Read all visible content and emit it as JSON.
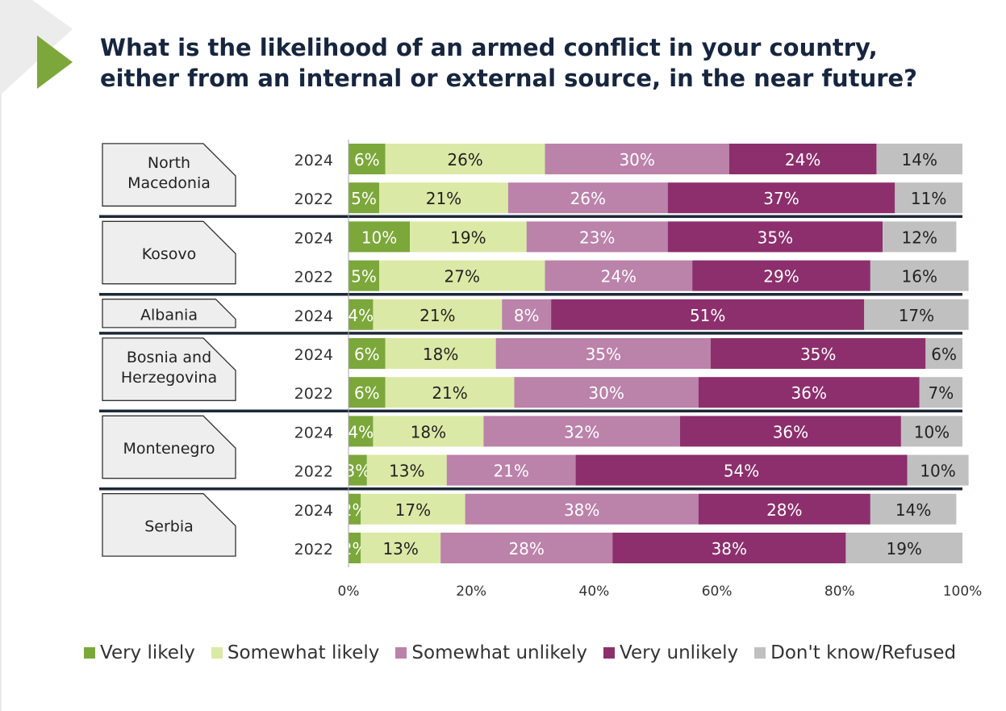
{
  "page": {
    "title": "What is the likelihood of an armed conflict in your country, either from an internal or external source, in the near future?"
  },
  "chart_data": {
    "type": "bar",
    "orientation": "horizontal",
    "stacked": "percent",
    "title": "What is the likelihood of an armed conflict in your country, either from an internal or external source, in the near future?",
    "xlim": [
      0,
      100
    ],
    "xticks": [
      "0%",
      "20%",
      "40%",
      "60%",
      "80%",
      "100%"
    ],
    "legend_position": "bottom",
    "series": [
      {
        "name": "Very likely",
        "color": "#7ca73a",
        "text_color": "#ffffff"
      },
      {
        "name": "Somewhat likely",
        "color": "#dbe9a6",
        "text_color": "#222222"
      },
      {
        "name": "Somewhat unlikely",
        "color": "#bb82aa",
        "text_color": "#ffffff"
      },
      {
        "name": "Very unlikely",
        "color": "#8c2f6c",
        "text_color": "#ffffff"
      },
      {
        "name": "Don't know/Refused",
        "color": "#c0c0c0",
        "text_color": "#222222"
      }
    ],
    "groups": [
      {
        "country": "North Macedonia",
        "label_lines": [
          "North",
          "Macedonia"
        ],
        "rows": [
          {
            "year": "2024",
            "values": [
              6,
              26,
              30,
              24,
              14
            ]
          },
          {
            "year": "2022",
            "values": [
              5,
              21,
              26,
              37,
              11
            ]
          }
        ]
      },
      {
        "country": "Kosovo",
        "label_lines": [
          "Kosovo"
        ],
        "rows": [
          {
            "year": "2024",
            "values": [
              10,
              19,
              23,
              35,
              12
            ]
          },
          {
            "year": "2022",
            "values": [
              5,
              27,
              24,
              29,
              16
            ]
          }
        ]
      },
      {
        "country": "Albania",
        "label_lines": [
          "Albania"
        ],
        "rows": [
          {
            "year": "2024",
            "values": [
              4,
              21,
              8,
              51,
              17
            ]
          }
        ]
      },
      {
        "country": "Bosnia and Herzegovina",
        "label_lines": [
          "Bosnia and",
          "Herzegovina"
        ],
        "rows": [
          {
            "year": "2024",
            "values": [
              6,
              18,
              35,
              35,
              6
            ]
          },
          {
            "year": "2022",
            "values": [
              6,
              21,
              30,
              36,
              7
            ]
          }
        ]
      },
      {
        "country": "Montenegro",
        "label_lines": [
          "Montenegro"
        ],
        "rows": [
          {
            "year": "2024",
            "values": [
              4,
              18,
              32,
              36,
              10
            ]
          },
          {
            "year": "2022",
            "values": [
              3,
              13,
              21,
              54,
              10
            ]
          }
        ]
      },
      {
        "country": "Serbia",
        "label_lines": [
          "Serbia"
        ],
        "rows": [
          {
            "year": "2024",
            "values": [
              2,
              17,
              38,
              28,
              14
            ]
          },
          {
            "year": "2022",
            "values": [
              2,
              13,
              28,
              38,
              19
            ]
          }
        ]
      }
    ]
  }
}
